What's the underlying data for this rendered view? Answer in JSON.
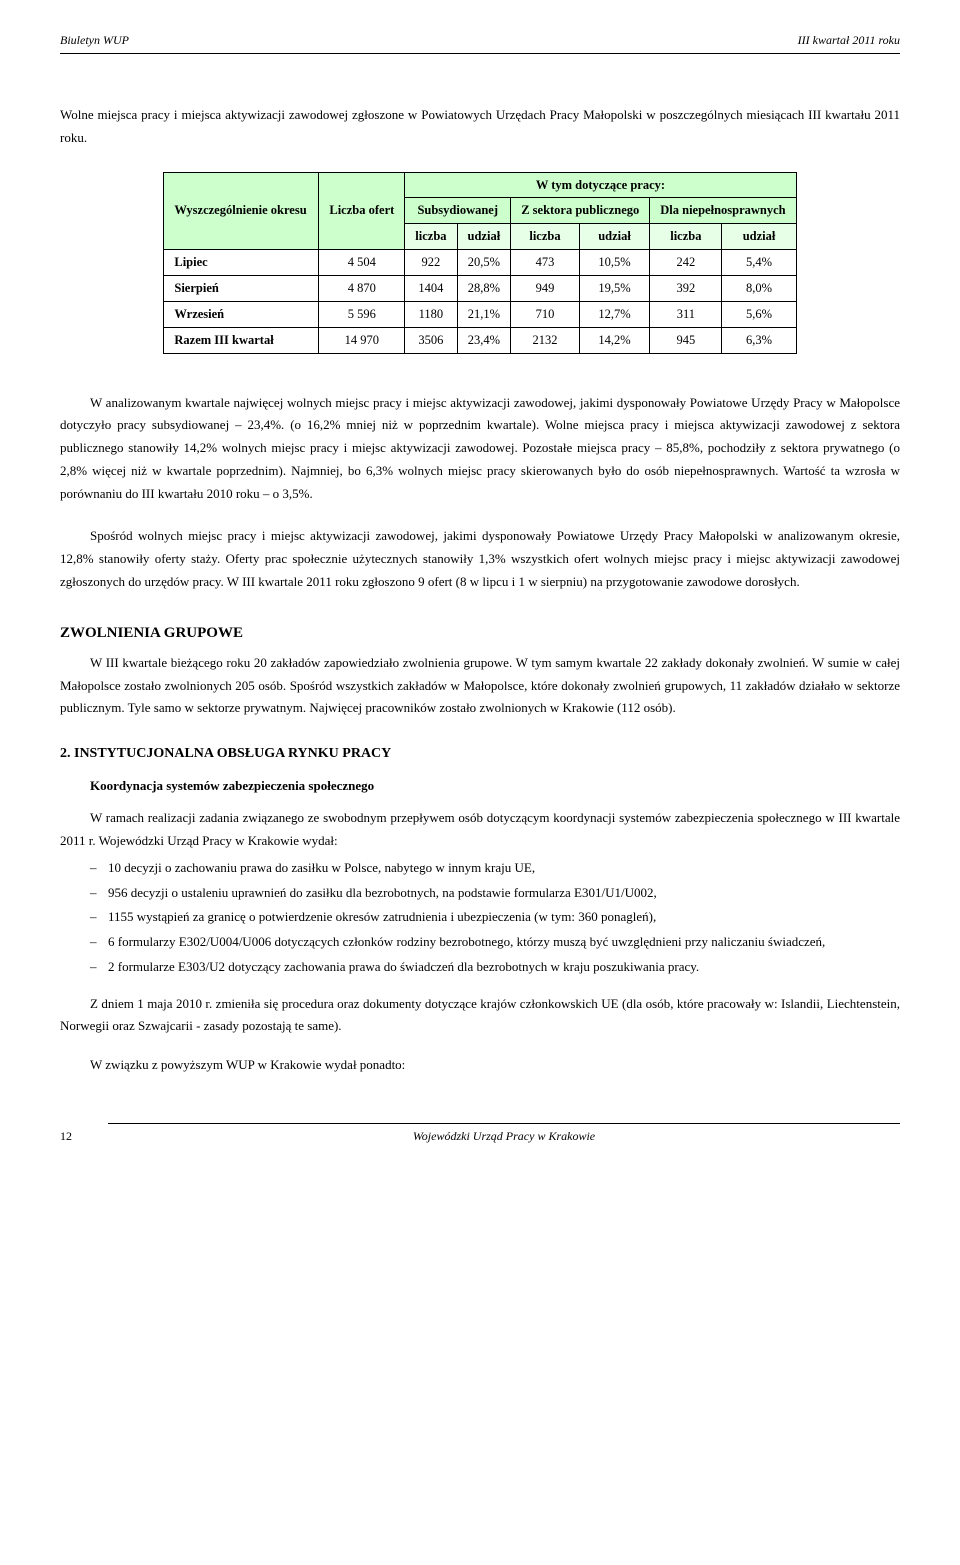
{
  "header": {
    "left": "Biuletyn WUP",
    "right": "III kwartał 2011 roku"
  },
  "intro": "Wolne miejsca pracy i miejsca aktywizacji zawodowej zgłoszone w Powiatowych Urzędach Pracy Małopolski w poszczególnych miesiącach III kwartału  2011 roku.",
  "table": {
    "top_header": "W tym dotyczące pracy:",
    "col_group_labels": [
      "Subsydiowanej",
      "Z sektora publicznego",
      "Dla niepełnosprawnych"
    ],
    "sub_cols": [
      "liczba",
      "udział",
      "liczba",
      "udział",
      "liczba",
      "udział"
    ],
    "row_head_label": "Wyszczególnienie okresu",
    "oferta_label": "Liczba ofert",
    "rows": [
      {
        "label": "Lipiec",
        "ofert": "4 504",
        "vals": [
          "922",
          "20,5%",
          "473",
          "10,5%",
          "242",
          "5,4%"
        ]
      },
      {
        "label": "Sierpień",
        "ofert": "4 870",
        "vals": [
          "1404",
          "28,8%",
          "949",
          "19,5%",
          "392",
          "8,0%"
        ]
      },
      {
        "label": "Wrzesień",
        "ofert": "5 596",
        "vals": [
          "1180",
          "21,1%",
          "710",
          "12,7%",
          "311",
          "5,6%"
        ]
      },
      {
        "label": "Razem III kwartał",
        "ofert": "14 970",
        "vals": [
          "3506",
          "23,4%",
          "2132",
          "14,2%",
          "945",
          "6,3%"
        ]
      }
    ]
  },
  "body_p1": "W analizowanym kwartale najwięcej wolnych miejsc pracy i miejsc aktywizacji zawodowej, jakimi dysponowały Powiatowe Urzędy Pracy w Małopolsce dotyczyło pracy subsydiowanej – 23,4%. (o 16,2% mniej niż w poprzednim kwartale). Wolne miejsca pracy i miejsca aktywizacji zawodowej z sektora publicznego stanowiły 14,2% wolnych miejsc pracy i miejsc aktywizacji zawodowej. Pozostałe miejsca pracy – 85,8%, pochodziły z sektora prywatnego (o 2,8% więcej niż w kwartale poprzednim). Najmniej, bo 6,3% wolnych miejsc pracy skierowanych było do osób niepełnosprawnych. Wartość ta wzrosła w porównaniu do III kwartału 2010 roku – o 3,5%.",
  "body_p2": "Spośród wolnych miejsc pracy i miejsc aktywizacji zawodowej, jakimi dysponowały Powiatowe Urzędy Pracy Małopolski w analizowanym okresie, 12,8% stanowiły oferty staży. Oferty prac społecznie użytecznych stanowiły 1,3% wszystkich ofert wolnych miejsc pracy i miejsc aktywizacji zawodowej zgłoszonych do urzędów pracy. W III kwartale 2011 roku zgłoszono 9 ofert (8 w lipcu i 1 w sierpniu) na przygotowanie zawodowe dorosłych.",
  "zwolnienia": {
    "title": "ZWOLNIENIA GRUPOWE",
    "p": "W III kwartale bieżącego roku 20 zakładów zapowiedziało zwolnienia grupowe. W tym samym kwartale 22 zakłady dokonały zwolnień. W sumie w całej Małopolsce zostało zwolnionych 205 osób. Spośród wszystkich zakładów w Małopolsce, które dokonały zwolnień grupowych, 11 zakładów działało w sektorze publicznym. Tyle samo w sektorze prywatnym. Najwięcej pracowników zostało zwolnionych w Krakowie (112 osób)."
  },
  "sec2": {
    "title": "2.    INSTYTUCJONALNA OBSŁUGA RYNKU PRACY",
    "sub": "Koordynacja systemów zabezpieczenia społecznego",
    "p_intro": "W ramach realizacji zadania związanego ze swobodnym przepływem osób dotyczącym koordynacji systemów zabezpieczenia społecznego w III kwartale 2011 r. Wojewódzki Urząd Pracy w Krakowie wydał:",
    "bullets": [
      "10 decyzji o zachowaniu prawa do zasiłku w Polsce, nabytego w innym kraju UE,",
      "956 decyzji o ustaleniu uprawnień do zasiłku dla bezrobotnych, na podstawie formularza E301/U1/U002,",
      "1155 wystąpień za granicę o potwierdzenie okresów zatrudnienia i ubezpieczenia (w tym: 360 ponagleń),",
      "6 formularzy E302/U004/U006 dotyczących członków rodziny bezrobotnego, którzy muszą być uwzględnieni przy naliczaniu świadczeń,",
      "2 formularze E303/U2 dotyczący zachowania prawa do świadczeń dla bezrobotnych w kraju poszukiwania pracy."
    ],
    "p_after1": "Z dniem 1 maja 2010 r. zmieniła się procedura oraz dokumenty dotyczące krajów członkowskich UE (dla osób, które pracowały w: Islandii, Liechtenstein, Norwegii oraz Szwajcarii - zasady pozostają te same).",
    "p_after2": "W związku z powyższym WUP w Krakowie wydał ponadto:"
  },
  "footer": {
    "page": "12",
    "org": "Wojewódzki Urząd Pracy w Krakowie"
  }
}
